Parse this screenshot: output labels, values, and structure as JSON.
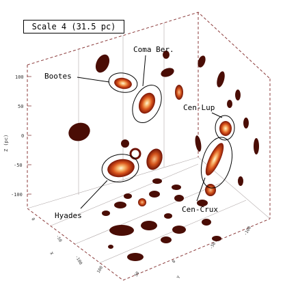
{
  "panel_label": "Scale 4 (31.5 pc)",
  "chart_data": {
    "type": "scatter",
    "subtype": "3d-density-isosurface",
    "title": "",
    "zlabel": "Z (pc)",
    "z_ticks": [
      "100",
      "50",
      "0",
      "-50",
      "-100"
    ],
    "x_ticks": [
      "0",
      "-50",
      "-100"
    ],
    "y_ticks": [
      "100",
      "50",
      "0",
      "-50",
      "-100"
    ],
    "x_axis_label_partial": "X",
    "y_axis_label_partial": "Y",
    "groups": [
      "Bootes",
      "Coma Ber.",
      "Cen-Lup",
      "Hyades",
      "Cen-Crux"
    ],
    "colors": {
      "dark_blob": "#4a0d05",
      "hot_core": "#fff4d6",
      "mid": "#e0641e",
      "outer": "#8a1a08",
      "axis_dashed": "#8b3a3a",
      "grid": "#b0a8a8"
    },
    "grid": true
  }
}
